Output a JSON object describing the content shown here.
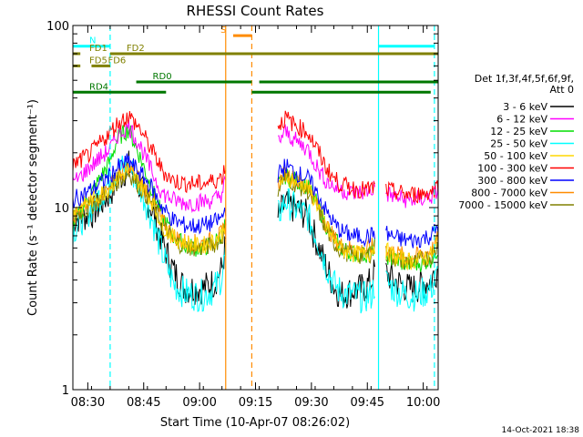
{
  "chart_data": {
    "type": "line",
    "title": "RHESSI Count Rates",
    "xlabel": "Start Time (10-Apr-07 08:26:02)",
    "ylabel": "Count Rate (s⁻¹ detector segment⁻¹)",
    "y_scale": "log",
    "ylim": [
      1,
      100
    ],
    "xlim": [
      "08:26",
      "10:04"
    ],
    "x_ticks": [
      "08:30",
      "08:45",
      "09:00",
      "09:15",
      "09:30",
      "09:45",
      "10:00"
    ],
    "y_ticks": [
      "1",
      "10",
      "100"
    ],
    "legend_header": [
      "Det 1f,3f,4f,5f,6f,9f,",
      "Att 0"
    ],
    "legend_position": "right",
    "footer": "14-Oct-2021 18:38",
    "x_minutes": [
      0,
      5,
      10,
      12,
      15,
      18,
      21,
      24,
      27,
      30,
      33,
      35,
      38,
      40,
      41,
      42,
      43,
      44,
      46,
      48,
      50,
      52,
      55,
      57,
      58,
      60,
      63,
      66,
      68,
      70,
      72,
      75,
      78,
      80,
      81,
      82,
      84,
      86,
      88,
      90,
      92,
      94,
      96,
      97,
      98
    ],
    "series": [
      {
        "name": "3 - 6 keV",
        "color": "#000000",
        "values": [
          8.6,
          9.2,
          12,
          14,
          17,
          13,
          10,
          6.5,
          4.5,
          3.6,
          3.6,
          3.6,
          3.9,
          4.6,
          6.3,
          null,
          null,
          null,
          null,
          null,
          null,
          null,
          8.8,
          10.5,
          10.2,
          9.8,
          9,
          6,
          4.7,
          3.7,
          3.3,
          3.5,
          3.6,
          3.9,
          4.5,
          null,
          4.4,
          4,
          3.8,
          3.6,
          3.6,
          3.8,
          4,
          4.3,
          4.7
        ]
      },
      {
        "name": "6 - 12 keV",
        "color": "#ff00ff",
        "values": [
          13.5,
          17,
          21,
          25,
          28,
          22,
          16,
          12,
          11,
          10.6,
          10.6,
          10.8,
          11,
          12,
          14,
          null,
          null,
          null,
          null,
          null,
          null,
          null,
          23,
          26,
          25,
          23,
          21,
          16,
          14,
          13,
          12.5,
          12,
          12.2,
          12.5,
          13,
          null,
          12,
          11.5,
          11.2,
          11,
          11,
          11.2,
          11.5,
          11.8,
          12.5
        ]
      },
      {
        "name": "12 - 25 keV",
        "color": "#00dd00",
        "values": [
          8,
          12,
          18,
          24,
          27,
          19,
          13,
          9,
          7,
          6.2,
          6,
          6,
          6.4,
          7.2,
          8.2,
          null,
          null,
          null,
          null,
          null,
          null,
          null,
          13,
          15,
          14.5,
          14,
          13,
          10,
          8,
          6.8,
          6,
          5.6,
          5.5,
          5.7,
          6.2,
          null,
          5.5,
          5.2,
          5,
          4.9,
          4.9,
          5,
          5.2,
          5.5,
          6
        ]
      },
      {
        "name": "25 - 50 keV",
        "color": "#00ffff",
        "values": [
          7.5,
          10,
          14,
          16,
          17,
          13,
          9,
          5.6,
          3.8,
          3.4,
          3.3,
          3.3,
          3.6,
          4.2,
          5.7,
          null,
          null,
          null,
          null,
          null,
          null,
          null,
          9,
          11,
          10.5,
          9.8,
          9,
          6.4,
          4.8,
          3.8,
          3.4,
          3.3,
          3.2,
          3.3,
          3.8,
          null,
          3.9,
          3.6,
          3.4,
          3.3,
          3.3,
          3.4,
          3.6,
          3.9,
          4.3
        ]
      },
      {
        "name": "50 - 100 keV",
        "color": "#ffd700",
        "values": [
          9.5,
          11,
          13,
          14.5,
          16,
          13.5,
          11,
          8,
          6.8,
          6.4,
          6.2,
          6.2,
          6.6,
          7.2,
          8.5,
          null,
          null,
          null,
          null,
          null,
          null,
          null,
          13,
          15,
          14.5,
          14,
          13,
          10,
          7.8,
          6.6,
          5.9,
          5.6,
          5.5,
          5.7,
          6.2,
          null,
          5.8,
          5.4,
          5.2,
          5.1,
          5.1,
          5.3,
          5.5,
          5.9,
          6.6
        ]
      },
      {
        "name": "100 - 300 keV",
        "color": "#ff0000",
        "values": [
          17,
          20,
          26,
          29,
          32,
          27,
          21,
          16,
          14,
          13.6,
          13.5,
          13.6,
          14,
          14.8,
          17,
          null,
          null,
          null,
          null,
          null,
          null,
          null,
          28,
          31,
          30,
          28,
          26,
          20,
          16.5,
          14.5,
          13.4,
          12.8,
          12.5,
          12.6,
          13,
          null,
          12.5,
          12.2,
          12,
          11.8,
          11.8,
          12,
          12.2,
          12.6,
          13.4
        ]
      },
      {
        "name": "300 - 800 keV",
        "color": "#0000ff",
        "values": [
          11,
          12.5,
          15,
          16.5,
          18,
          15.5,
          13,
          10,
          8.5,
          8,
          7.9,
          8,
          8.3,
          8.8,
          10,
          null,
          null,
          null,
          null,
          null,
          null,
          null,
          15,
          17,
          16.5,
          15.5,
          14.5,
          11.5,
          9.5,
          8.2,
          7.4,
          7,
          6.9,
          7,
          7.4,
          null,
          7.2,
          6.9,
          6.7,
          6.6,
          6.6,
          6.8,
          7,
          7.4,
          8
        ]
      },
      {
        "name": "800 - 7000 keV",
        "color": "#ff8c00",
        "values": [
          9,
          10.5,
          13,
          15,
          16.5,
          14,
          11.5,
          8.4,
          7,
          6.5,
          6.4,
          6.4,
          6.7,
          7.2,
          8.2,
          null,
          null,
          null,
          null,
          null,
          null,
          null,
          13.5,
          15.5,
          15,
          14,
          13,
          10,
          8,
          6.8,
          6.2,
          5.9,
          5.8,
          6,
          6.4,
          null,
          6,
          5.7,
          5.5,
          5.4,
          5.4,
          5.6,
          5.8,
          6.1,
          6.8
        ]
      },
      {
        "name": "7000 - 15000 keV",
        "color": "#808000",
        "values": [
          8.8,
          10.2,
          12.5,
          14,
          15.5,
          13,
          10.8,
          8,
          6.6,
          6.1,
          6,
          6,
          6.3,
          6.8,
          7.8,
          null,
          null,
          null,
          null,
          null,
          null,
          null,
          12.8,
          14.8,
          14.2,
          13.3,
          12.3,
          9.5,
          7.5,
          6.4,
          5.8,
          5.5,
          5.4,
          5.6,
          6,
          null,
          5.6,
          5.3,
          5.1,
          5,
          5,
          5.2,
          5.4,
          5.7,
          6.3
        ]
      }
    ],
    "state_bars": [
      {
        "label": "N",
        "color": "#00ffff",
        "level": 77,
        "segments": [
          [
            0,
            10
          ],
          [
            82,
            97
          ]
        ]
      },
      {
        "label": "FD1",
        "color": "#808000",
        "level": 70,
        "segments": [
          [
            0,
            2
          ]
        ]
      },
      {
        "label": "FD2",
        "color": "#808000",
        "level": 70,
        "segments": [
          [
            10,
            98
          ]
        ]
      },
      {
        "label": "FD5",
        "color": "#808000",
        "level": 60,
        "segments": [
          [
            0,
            2
          ]
        ]
      },
      {
        "label": "FD6",
        "color": "#808000",
        "level": 60,
        "segments": [
          [
            5,
            10
          ]
        ]
      },
      {
        "label": "S",
        "color": "#ff8c00",
        "level": 88,
        "segments": [
          [
            43,
            48
          ]
        ]
      },
      {
        "label": "RD0",
        "color": "#007700",
        "level": 49,
        "segments": [
          [
            17,
            48
          ],
          [
            50,
            98
          ]
        ]
      },
      {
        "label": "RD4",
        "color": "#007700",
        "level": 43,
        "segments": [
          [
            0,
            25
          ],
          [
            48,
            96
          ]
        ]
      }
    ],
    "vertical_lines": [
      {
        "minute": 10,
        "color": "#00ffff",
        "style": "dashed"
      },
      {
        "minute": 41,
        "color": "#ff8c00",
        "style": "solid"
      },
      {
        "minute": 48,
        "color": "#ff8c00",
        "style": "dashed"
      },
      {
        "minute": 82,
        "color": "#00ffff",
        "style": "solid"
      },
      {
        "minute": 97,
        "color": "#00ffff",
        "style": "dashed"
      }
    ]
  }
}
